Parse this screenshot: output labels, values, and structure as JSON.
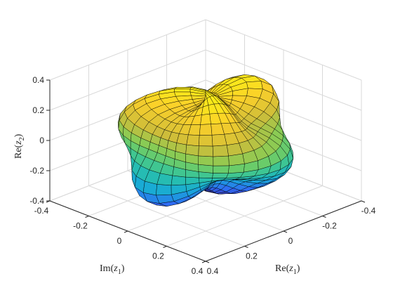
{
  "chart_data": {
    "type": "surface",
    "title": "",
    "axes": {
      "x": {
        "label_main": "Re",
        "label_var": "z",
        "label_sub": "1",
        "range": [
          -0.4,
          0.4
        ],
        "ticks": [
          "-0.4",
          "-0.2",
          "0",
          "0.2",
          "0.4"
        ],
        "tick_values": [
          -0.4,
          -0.2,
          0,
          0.2,
          0.4
        ]
      },
      "y": {
        "label_main": "Im",
        "label_var": "z",
        "label_sub": "1",
        "range": [
          -0.4,
          0.4
        ],
        "ticks": [
          "-0.4",
          "-0.2",
          "0",
          "0.2",
          "0.4"
        ],
        "tick_values": [
          -0.4,
          -0.2,
          0,
          0.2,
          0.4
        ]
      },
      "z": {
        "label_main": "Re",
        "label_var": "z",
        "label_sub": "2",
        "range": [
          -0.4,
          0.4
        ],
        "ticks": [
          "-0.4",
          "-0.2",
          "0",
          "0.2",
          "0.4"
        ],
        "tick_values": [
          -0.4,
          -0.2,
          0,
          0.2,
          0.4
        ]
      }
    },
    "grid": true,
    "colormap": [
      "#3e26a8",
      "#2f6cf3",
      "#17a9d8",
      "#2bc3a4",
      "#7cce5a",
      "#cdbd3a",
      "#fbd02a",
      "#f9fb0e"
    ],
    "surface": {
      "description_values": "closed bumpy surface roughly spanning the cube [-0.35,0.35]^3",
      "radius_base": 0.3,
      "bump_amplitude": 0.06,
      "mesh_color": "#000000"
    }
  }
}
